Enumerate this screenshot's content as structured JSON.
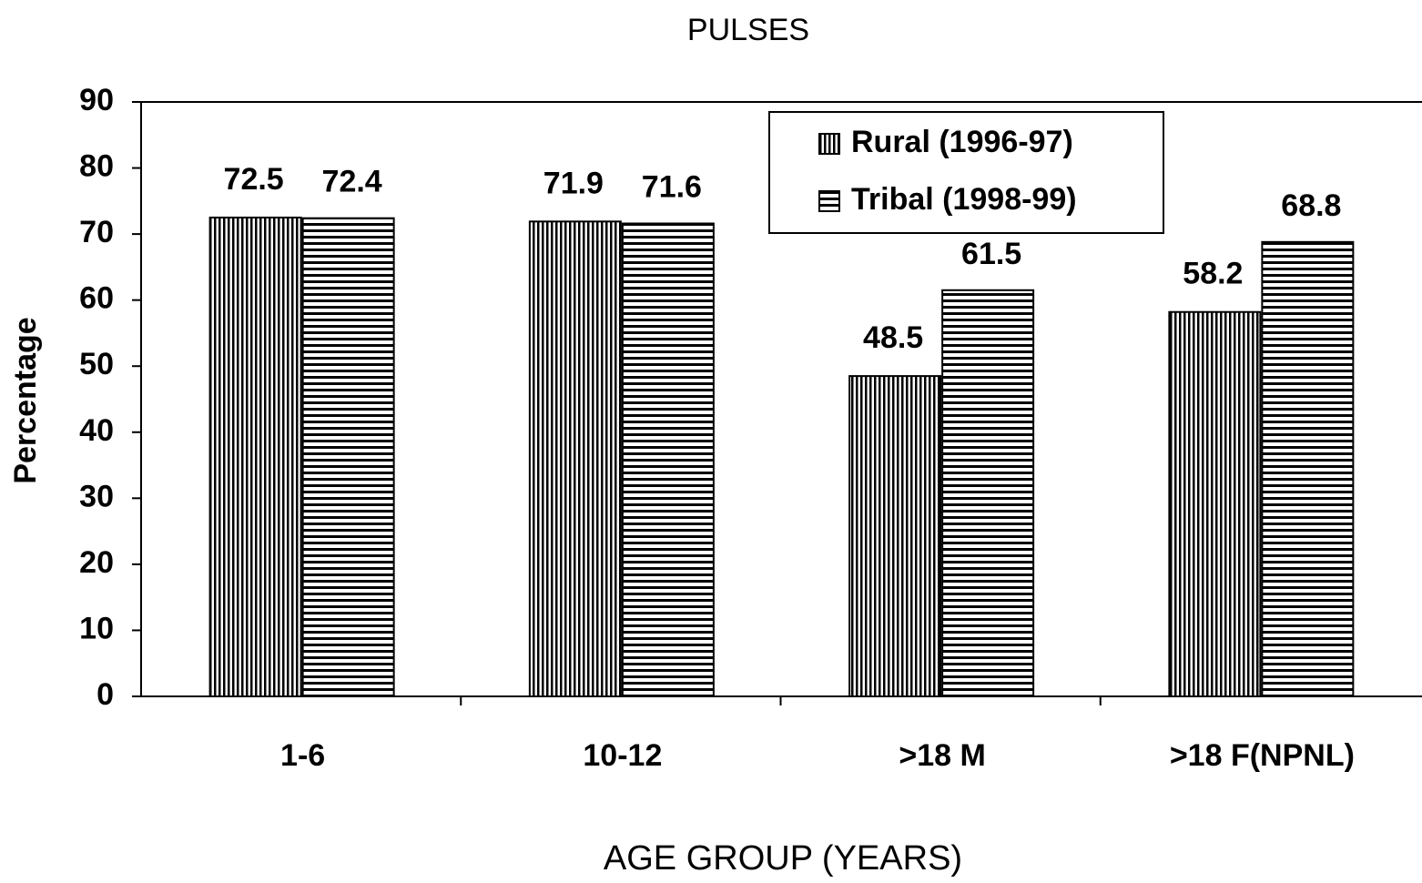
{
  "chart_data": {
    "type": "bar",
    "title": "PULSES",
    "x_label": "AGE GROUP (YEARS)",
    "y_label": "Percentage",
    "categories": [
      "1-6",
      "10-12",
      ">18 M",
      ">18 F(NPNL)"
    ],
    "series": [
      {
        "name": "Rural (1996-97)",
        "color": "#000000",
        "pattern": "vertical",
        "values": [
          72.5,
          71.9,
          48.5,
          58.2
        ]
      },
      {
        "name": "Tribal (1998-99)",
        "color": "#000000",
        "pattern": "horizontal",
        "values": [
          72.4,
          71.6,
          61.5,
          68.8
        ]
      }
    ],
    "ylim": [
      0,
      90
    ],
    "yticks": [
      0,
      10,
      20,
      30,
      40,
      50,
      60,
      70,
      80,
      90
    ],
    "grid": false,
    "legend": "top"
  }
}
